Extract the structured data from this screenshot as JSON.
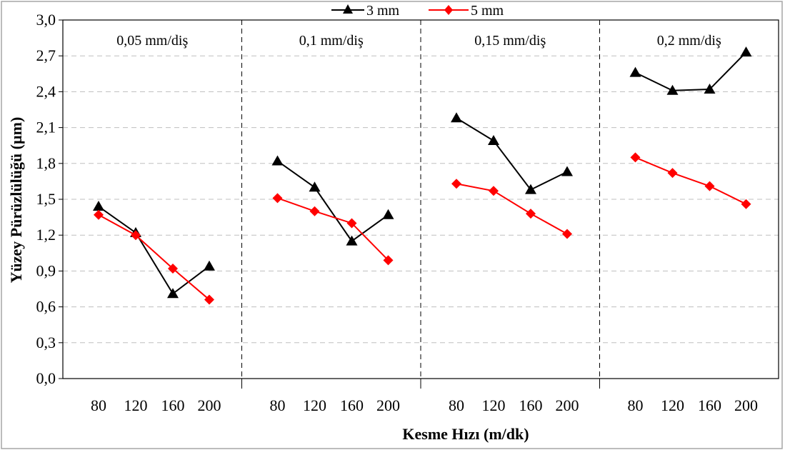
{
  "chart_data": {
    "type": "line",
    "xlabel": "Kesme Hızı (m/dk)",
    "ylabel": "Yüzey Pürüzlülüğü (µm)",
    "ylim": [
      0,
      3.0
    ],
    "yticks": [
      "0,0",
      "0,3",
      "0,6",
      "0,9",
      "1,2",
      "1,5",
      "1,8",
      "2,1",
      "2,4",
      "2,7",
      "3,0"
    ],
    "categories": [
      "80",
      "120",
      "160",
      "200"
    ],
    "grid": "horizontal dashed",
    "legend_position": "top-center",
    "panels": [
      {
        "label": "0,05 mm/diş",
        "series": [
          {
            "name": "3 mm",
            "values": [
              1.44,
              1.22,
              0.71,
              0.94
            ]
          },
          {
            "name": "5 mm",
            "values": [
              1.37,
              1.2,
              0.92,
              0.66
            ]
          }
        ]
      },
      {
        "label": "0,1 mm/diş",
        "series": [
          {
            "name": "3 mm",
            "values": [
              1.82,
              1.6,
              1.15,
              1.37
            ]
          },
          {
            "name": "5 mm",
            "values": [
              1.51,
              1.4,
              1.3,
              0.99
            ]
          }
        ]
      },
      {
        "label": "0,15 mm/diş",
        "series": [
          {
            "name": "3 mm",
            "values": [
              2.18,
              1.99,
              1.58,
              1.73
            ]
          },
          {
            "name": "5 mm",
            "values": [
              1.63,
              1.57,
              1.38,
              1.21
            ]
          }
        ]
      },
      {
        "label": "0,2 mm/diş",
        "series": [
          {
            "name": "3 mm",
            "values": [
              2.56,
              2.41,
              2.42,
              2.73
            ]
          },
          {
            "name": "5 mm",
            "values": [
              1.85,
              1.72,
              1.61,
              1.46
            ]
          }
        ]
      }
    ],
    "legend": [
      {
        "name": "3 mm",
        "color": "#000000",
        "marker": "triangle"
      },
      {
        "name": "5 mm",
        "color": "#ff0000",
        "marker": "diamond"
      }
    ]
  }
}
